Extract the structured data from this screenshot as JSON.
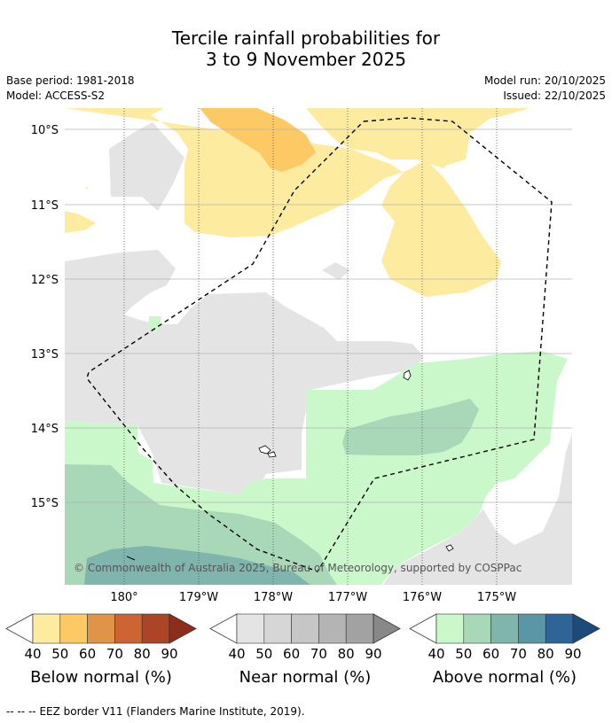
{
  "header": {
    "title_line1": "Tercile rainfall probabilities for",
    "title_line2": "3 to 9 November 2025",
    "base_period": "Base period: 1981-2018",
    "model": "Model: ACCESS-S2",
    "model_run": "Model run: 20/10/2025",
    "issued": "Issued: 22/10/2025"
  },
  "map": {
    "lat_labels": [
      "10°S",
      "11°S",
      "12°S",
      "13°S",
      "14°S",
      "15°S"
    ],
    "lon_labels": [
      "180°",
      "179°W",
      "178°W",
      "177°W",
      "176°W",
      "175°W"
    ],
    "copyright": "© Commonwealth of Australia 2025, Bureau of Meteorology, supported by COSPPac"
  },
  "colorbars": [
    {
      "title": "Below normal (%)",
      "ticks": [
        "40",
        "50",
        "60",
        "70",
        "80",
        "90"
      ],
      "colors": [
        "#fdeba0",
        "#fdc964",
        "#e09448",
        "#cc6434",
        "#ab4525",
        "#8c2e1b"
      ]
    },
    {
      "title": "Near normal (%)",
      "ticks": [
        "40",
        "50",
        "60",
        "70",
        "80",
        "90"
      ],
      "colors": [
        "#e4e4e4",
        "#d6d6d6",
        "#c6c6c6",
        "#b4b4b4",
        "#a2a2a2",
        "#888888"
      ]
    },
    {
      "title": "Above normal (%)",
      "ticks": [
        "40",
        "50",
        "60",
        "70",
        "80",
        "90"
      ],
      "colors": [
        "#caf8cb",
        "#a8d8b8",
        "#7fb5ad",
        "#5b96a4",
        "#2f6497",
        "#1b4a7b"
      ]
    }
  ],
  "footer": {
    "line_sample": "-- -- --",
    "text": "EEZ border V11 (Flanders Marine Institute, 2019)."
  }
}
